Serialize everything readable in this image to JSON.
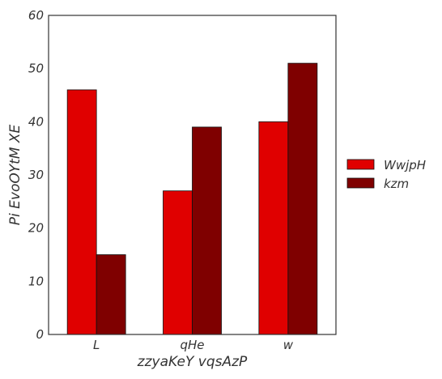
{
  "chart_data": {
    "type": "bar",
    "categories": [
      "L",
      "qHe",
      "w"
    ],
    "series": [
      {
        "name": "WwjpH",
        "values": [
          46,
          27,
          40
        ],
        "color": "#e00000"
      },
      {
        "name": "kzm",
        "values": [
          15,
          39,
          51
        ],
        "color": "#7f0000"
      }
    ],
    "xlabel": "zzyaKeY vqsAzP",
    "ylabel": "Pi EvoOYtM XE",
    "ylim": [
      0,
      60
    ],
    "yticks": [
      0,
      10,
      20,
      30,
      40,
      50,
      60
    ],
    "grid": false,
    "legend_position": "right"
  }
}
